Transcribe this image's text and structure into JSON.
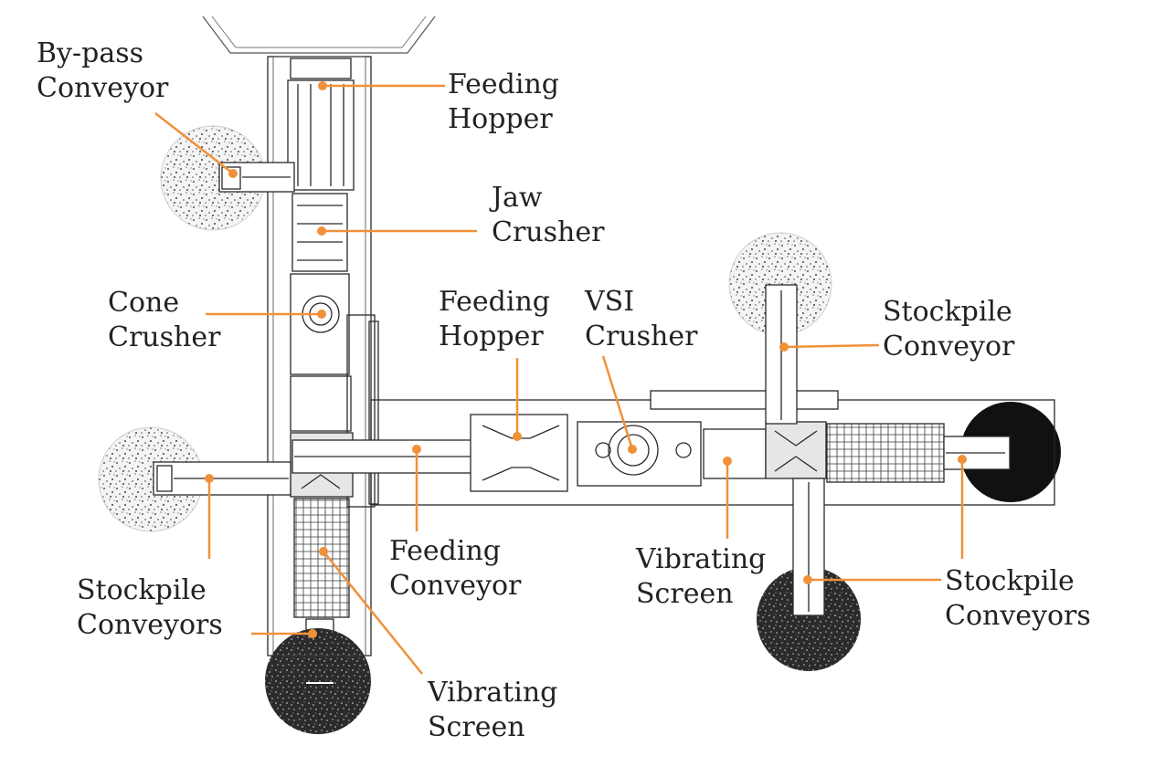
{
  "colors": {
    "leader": "#f0913a",
    "outline": "#2a2a2a",
    "pile_light": "#d8d8d8",
    "pile_dark": "#151515"
  },
  "labels": {
    "bypass_conveyor": [
      "By-pass",
      "Conveyor"
    ],
    "feeding_hopper_top": [
      "Feeding",
      "Hopper"
    ],
    "jaw_crusher": [
      "Jaw",
      "Crusher"
    ],
    "cone_crusher": [
      "Cone",
      "Crusher"
    ],
    "feeding_hopper_mid": [
      "Feeding",
      "Hopper"
    ],
    "vsi_crusher": [
      "VSI",
      "Crusher"
    ],
    "stockpile_conveyor": [
      "Stockpile",
      "Conveyor"
    ],
    "stockpile_conveyors_left": [
      "Stockpile",
      "Conveyors"
    ],
    "feeding_conveyor": [
      "Feeding",
      "Conveyor"
    ],
    "vibrating_screen_mid": [
      "Vibrating",
      "Screen"
    ],
    "stockpile_conveyors_right": [
      "Stockpile",
      "Conveyors"
    ],
    "vibrating_screen_bottom": [
      "Vibrating",
      "Screen"
    ]
  }
}
